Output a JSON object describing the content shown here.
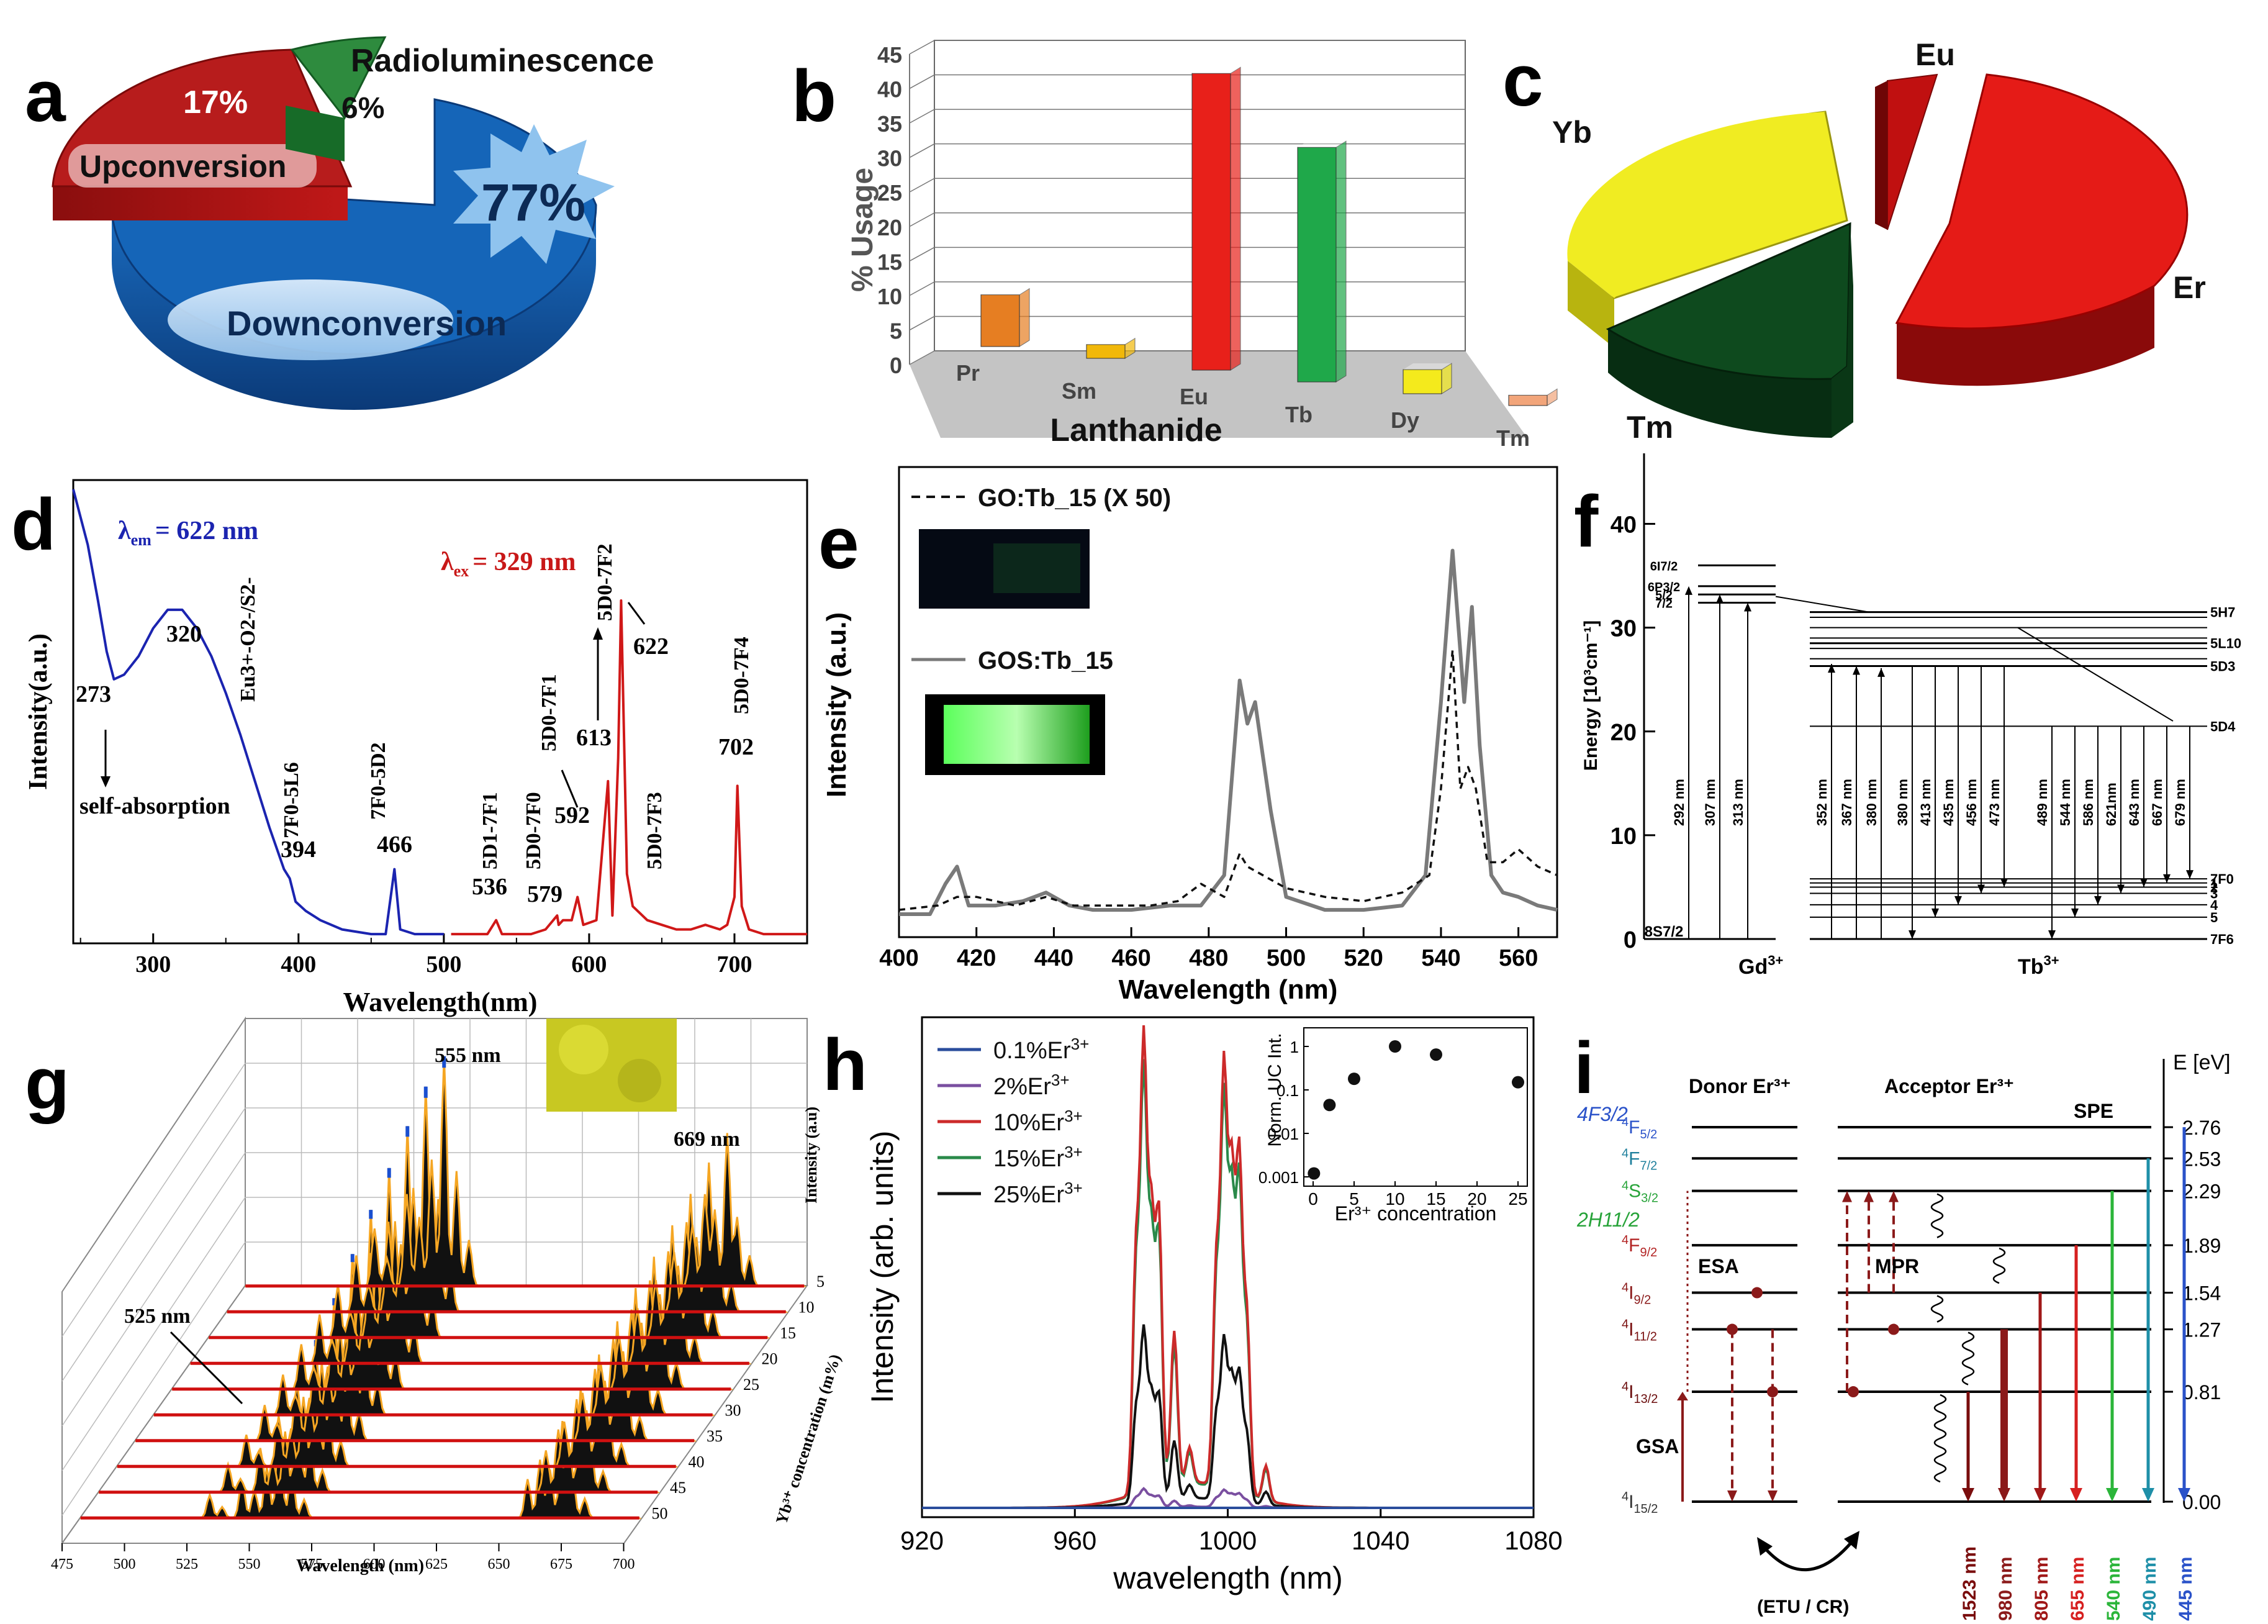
{
  "panel_letters": [
    "a",
    "b",
    "c",
    "d",
    "e",
    "f",
    "g",
    "h",
    "i"
  ],
  "chart_data": [
    {
      "panel": "a",
      "type": "pie",
      "slices": [
        {
          "label": "Downconversion",
          "value": 77,
          "value_label": "77%",
          "color": "#1565b8"
        },
        {
          "label": "Upconversion",
          "value": 17,
          "value_label": "17%",
          "color": "#b71c1c"
        },
        {
          "label": "Radioluminescence",
          "value": 6,
          "value_label": "6%",
          "color": "#2e8b3e"
        }
      ]
    },
    {
      "panel": "b",
      "type": "bar",
      "categories": [
        "Pr",
        "Sm",
        "Eu",
        "Tb",
        "Dy",
        "Tm"
      ],
      "values": [
        7.5,
        2,
        43,
        34,
        3.5,
        1.5
      ],
      "colors": [
        "#e67e22",
        "#f1b80a",
        "#e8201a",
        "#1fa84a",
        "#f4ea1c",
        "#f2a57a"
      ],
      "ylabel": "% Usage",
      "xlabel": "Lanthanide",
      "ylim": [
        0,
        45
      ],
      "yticks": [
        "0",
        "5",
        "10",
        "15",
        "20",
        "25",
        "30",
        "35",
        "40",
        "45"
      ]
    },
    {
      "panel": "c",
      "type": "pie",
      "slices": [
        {
          "label": "Er",
          "value": 46,
          "color": "#e51b17"
        },
        {
          "label": "Yb",
          "value": 30,
          "color": "#f0ec22"
        },
        {
          "label": "Tm",
          "value": 19,
          "color": "#0e4a1e"
        },
        {
          "label": "Eu",
          "value": 5,
          "color": "#c01010"
        }
      ]
    },
    {
      "panel": "d",
      "type": "line",
      "xlabel": "Wavelength(nm)",
      "ylabel": "Intensity(a.u.)",
      "xticks": [
        "300",
        "400",
        "500",
        "600",
        "700"
      ],
      "xlim": [
        245,
        750
      ],
      "series": [
        {
          "name": "λem = 622 nm",
          "color": "#1b24b0",
          "x": [
            245,
            250,
            255,
            262,
            268,
            273,
            280,
            290,
            300,
            310,
            320,
            330,
            340,
            350,
            360,
            370,
            380,
            390,
            394,
            398,
            405,
            415,
            430,
            450,
            460,
            466,
            470,
            480,
            500
          ],
          "y": [
            0.98,
            0.92,
            0.86,
            0.74,
            0.63,
            0.57,
            0.58,
            0.62,
            0.68,
            0.72,
            0.72,
            0.68,
            0.62,
            0.54,
            0.45,
            0.35,
            0.25,
            0.16,
            0.14,
            0.09,
            0.07,
            0.05,
            0.03,
            0.02,
            0.02,
            0.16,
            0.03,
            0.02,
            0.02
          ]
        },
        {
          "name": "λex = 329 nm",
          "color": "#d01818",
          "x": [
            505,
            520,
            530,
            536,
            540,
            550,
            560,
            570,
            578,
            579,
            582,
            588,
            592,
            596,
            605,
            613,
            616,
            620,
            622,
            626,
            630,
            640,
            650,
            660,
            670,
            680,
            690,
            695,
            700,
            702,
            705,
            710,
            720,
            750
          ],
          "y": [
            0.02,
            0.02,
            0.02,
            0.05,
            0.02,
            0.02,
            0.02,
            0.03,
            0.06,
            0.04,
            0.05,
            0.05,
            0.1,
            0.04,
            0.05,
            0.35,
            0.06,
            0.4,
            0.74,
            0.15,
            0.08,
            0.05,
            0.04,
            0.03,
            0.03,
            0.04,
            0.03,
            0.04,
            0.1,
            0.34,
            0.08,
            0.03,
            0.02,
            0.02
          ]
        }
      ],
      "annotations": [
        "320",
        "273",
        "394",
        "466",
        "536",
        "579",
        "592",
        "613",
        "622",
        "702",
        "self-absorption",
        "Eu3+-O2-/S2-",
        "7F0-5L6",
        "7F0-5D2",
        "5D1-7F1",
        "5D0-7F0",
        "5D0-7F1",
        "5D0-7F2",
        "5D0-7F3",
        "5D0-7F4"
      ]
    },
    {
      "panel": "e",
      "type": "line",
      "xlabel": "Wavelength (nm)",
      "ylabel": "Intensity (a.u.)",
      "xlim": [
        400,
        570
      ],
      "xticks": [
        "400",
        "420",
        "440",
        "460",
        "480",
        "500",
        "520",
        "540",
        "560"
      ],
      "series": [
        {
          "name": "GOS:Tb_15",
          "color": "#7a7a7a",
          "x": [
            400,
            408,
            412,
            415,
            418,
            425,
            432,
            438,
            444,
            450,
            460,
            470,
            478,
            484,
            488,
            490,
            492,
            496,
            500,
            510,
            520,
            530,
            536,
            540,
            543,
            546,
            548,
            550,
            553,
            556,
            560,
            565,
            570
          ],
          "y": [
            0.01,
            0.01,
            0.08,
            0.12,
            0.03,
            0.03,
            0.04,
            0.06,
            0.03,
            0.02,
            0.02,
            0.03,
            0.03,
            0.1,
            0.55,
            0.45,
            0.5,
            0.25,
            0.05,
            0.02,
            0.02,
            0.03,
            0.1,
            0.5,
            0.85,
            0.5,
            0.72,
            0.4,
            0.1,
            0.06,
            0.05,
            0.03,
            0.02
          ]
        },
        {
          "name": "GO:Tb_15 (X 50)",
          "color": "#111111",
          "x": [
            400,
            410,
            415,
            420,
            430,
            438,
            445,
            455,
            465,
            472,
            478,
            484,
            488,
            490,
            494,
            500,
            510,
            520,
            530,
            537,
            540,
            543,
            545,
            547,
            549,
            552,
            556,
            560,
            565,
            570
          ],
          "y": [
            0.02,
            0.03,
            0.05,
            0.05,
            0.03,
            0.05,
            0.03,
            0.03,
            0.03,
            0.04,
            0.08,
            0.05,
            0.15,
            0.12,
            0.1,
            0.07,
            0.05,
            0.04,
            0.06,
            0.1,
            0.3,
            0.62,
            0.3,
            0.35,
            0.3,
            0.13,
            0.13,
            0.16,
            0.12,
            0.1
          ]
        }
      ]
    },
    {
      "panel": "f",
      "type": "diagram",
      "ylabel": "Energy [10³cm⁻¹]",
      "ylim": [
        0,
        45
      ],
      "yticks": [
        "0",
        "10",
        "20",
        "30",
        "40"
      ],
      "ions": [
        "Gd3+",
        "Tb3+"
      ],
      "gd_levels": [
        {
          "label": "6I7/2",
          "energy": 36
        },
        {
          "label": "6P3/2",
          "energy": 34
        },
        {
          "label": "5/2",
          "energy": 33.2
        },
        {
          "label": "7/2",
          "energy": 32.4
        },
        {
          "label": "8S7/2",
          "energy": 0
        }
      ],
      "tb_levels": [
        {
          "label": "5H7",
          "energy": 31.5
        },
        {
          "label": "5L10",
          "energy": 28.5
        },
        {
          "label": "5D3",
          "energy": 26.3
        },
        {
          "label": "5D4",
          "energy": 20.5
        },
        {
          "label": "7F0",
          "energy": 5.8
        },
        {
          "label": "1",
          "energy": 5.4
        },
        {
          "label": "2",
          "energy": 5.0
        },
        {
          "label": "3",
          "energy": 4.4
        },
        {
          "label": "4",
          "energy": 3.3
        },
        {
          "label": "5",
          "energy": 2.1
        },
        {
          "label": "7F6",
          "energy": 0
        }
      ],
      "gd_transitions_nm": [
        "292 nm",
        "307 nm",
        "313 nm"
      ],
      "tb_absorption_nm": [
        "352 nm",
        "367 nm",
        "380 nm"
      ],
      "tb_emission_nm": [
        "380 nm",
        "413 nm",
        "435 nm",
        "456 nm",
        "473 nm",
        "489 nm",
        "544 nm",
        "586 nm",
        "621nm",
        "643 nm",
        "667 nm",
        "679 nm"
      ]
    },
    {
      "panel": "g",
      "type": "line",
      "xlabel": "Wavelength (nm)",
      "zlabel": "Intensity (a.u)",
      "depth_label": "Yb3+ concentration (m%)",
      "xticks": [
        "475",
        "500",
        "525",
        "550",
        "575",
        "600",
        "625",
        "650",
        "675",
        "700"
      ],
      "depth_ticks": [
        "5",
        "10",
        "15",
        "20",
        "25",
        "30",
        "35",
        "40",
        "45",
        "50"
      ],
      "peak_labels": [
        "555 nm",
        "669 nm",
        "525 nm"
      ],
      "green_peak_heights": [
        1.0,
        0.98,
        0.92,
        0.85,
        0.78,
        0.7,
        0.62,
        0.55,
        0.48,
        0.4
      ],
      "red_peak_heights": [
        0.82,
        0.8,
        0.77,
        0.74,
        0.71,
        0.68,
        0.64,
        0.6,
        0.56,
        0.52
      ]
    },
    {
      "panel": "h",
      "type": "line",
      "xlabel": "wavelength (nm)",
      "ylabel": "Intensity (arb. units)",
      "xlim": [
        920,
        1080
      ],
      "xticks": [
        "920",
        "960",
        "1000",
        "1040",
        "1080"
      ],
      "series": [
        {
          "name": "0.1%Er3+",
          "color": "#2a4d9c",
          "peak_scale": 0.0
        },
        {
          "name": "2%Er3+",
          "color": "#7a4fa0",
          "peak_scale": 0.04
        },
        {
          "name": "10%Er3+",
          "color": "#cc2a2a",
          "peak_scale": 1.0
        },
        {
          "name": "15%Er3+",
          "color": "#2a8a4a",
          "peak_scale": 0.93
        },
        {
          "name": "25%Er3+",
          "color": "#111111",
          "peak_scale": 0.38
        }
      ],
      "inset": {
        "type": "scatter",
        "xlabel": "Er3+ concentration",
        "ylabel": "Norm. UC Int.",
        "xticks": [
          "0",
          "5",
          "10",
          "15",
          "20",
          "25"
        ],
        "yticks": [
          "0.001",
          "0.01",
          "0.1",
          "1"
        ],
        "x": [
          0.1,
          2,
          5,
          10,
          15,
          25
        ],
        "y": [
          0.0012,
          0.045,
          0.18,
          1.0,
          0.65,
          0.15
        ]
      }
    },
    {
      "panel": "i",
      "type": "diagram",
      "ylabel": "E [eV]",
      "donor_label": "Donor Er3+",
      "acceptor_label": "Acceptor Er3+",
      "transfer_label": "(ETU / CR)",
      "levels": [
        {
          "label": "4F5/2",
          "energy": 2.76,
          "color": "#2a52c9"
        },
        {
          "label": "4F7/2",
          "energy": 2.53,
          "color": "#1e7f9c"
        },
        {
          "label": "4S3/2",
          "energy": 2.29,
          "color": "#27a339"
        },
        {
          "label": "4F9/2",
          "energy": 1.89,
          "color": "#b22222"
        },
        {
          "label": "4I9/2",
          "energy": 1.54,
          "color": "#8b1a1a"
        },
        {
          "label": "4I11/2",
          "energy": 1.27,
          "color": "#7a1010"
        },
        {
          "label": "4I13/2",
          "energy": 0.81,
          "color": "#6b0d0d"
        },
        {
          "label": "4I15/2",
          "energy": 0.0,
          "color": "#333333"
        }
      ],
      "energy_ticks": [
        "2.76",
        "2.53",
        "2.29",
        "1.89",
        "1.54",
        "1.27",
        "0.81",
        "0.00"
      ],
      "side_labels": [
        {
          "label": "4F3/2",
          "color": "#2a52c9"
        },
        {
          "label": "2H11/2",
          "color": "#27a339"
        }
      ],
      "process_labels": [
        "ESA",
        "GSA",
        "MPR",
        "SPE"
      ],
      "emissions": [
        {
          "label": "1523 nm",
          "color": "#7a0d0d",
          "top": 0.81
        },
        {
          "label": "980 nm",
          "color": "#8b1a1a",
          "top": 1.27
        },
        {
          "label": "805 nm",
          "color": "#a01818",
          "top": 1.54
        },
        {
          "label": "655 nm",
          "color": "#d62020",
          "top": 1.89
        },
        {
          "label": "540 nm",
          "color": "#2bb53a",
          "top": 2.29
        },
        {
          "label": "490 nm",
          "color": "#1e8fa8",
          "top": 2.53
        },
        {
          "label": "445 nm",
          "color": "#2a52c9",
          "top": 2.76
        }
      ]
    }
  ],
  "text": {
    "a_radio": "Radioluminescence",
    "a_up": "Upconversion",
    "a_down": "Downconversion",
    "a_77": "77%",
    "a_17": "17%",
    "a_6": "6%",
    "c_eu": "Eu",
    "c_yb": "Yb",
    "c_er": "Er",
    "c_tm": "Tm",
    "b_ylabel": "% Usage",
    "b_xlabel": "Lanthanide",
    "d_xlabel": "Wavelength(nm)",
    "d_ylabel": "Intensity(a.u.)",
    "d_lem_a": "λ",
    "d_lem_sub": "em",
    "d_lem_b": "= 622 nm",
    "d_lex_a": "λ",
    "d_lex_sub": "ex",
    "d_lex_b": "= 329 nm",
    "d_selfabs": "self-absorption",
    "e_xlabel": "Wavelength (nm)",
    "e_ylabel": "Intensity (a.u.)",
    "e_leg1": "GO:Tb_15 (X 50)",
    "e_leg2": "GOS:Tb_15",
    "f_ylabel": "Energy [10³cm⁻¹]",
    "f_gd": "Gd",
    "f_tb": "Tb",
    "g_xlabel": "Wavelength (nm)",
    "g_zlabel": "Intensity (a.u)",
    "g_depth": "Yb³⁺ concentration (m%)",
    "g_555": "555 nm",
    "g_669": "669 nm",
    "g_525": "525 nm",
    "h_xlabel": "wavelength (nm)",
    "h_ylabel": "Intensity (arb. units)",
    "h_inset_x": "Er³⁺ concentration",
    "h_inset_y": "Norm. UC Int.",
    "i_e": "E [eV]",
    "i_donor": "Donor Er³⁺",
    "i_acceptor": "Acceptor Er³⁺",
    "i_transfer": "(ETU / CR)",
    "i_esa": "ESA",
    "i_gsa": "GSA",
    "i_mpr": "MPR",
    "i_spe": "SPE"
  }
}
